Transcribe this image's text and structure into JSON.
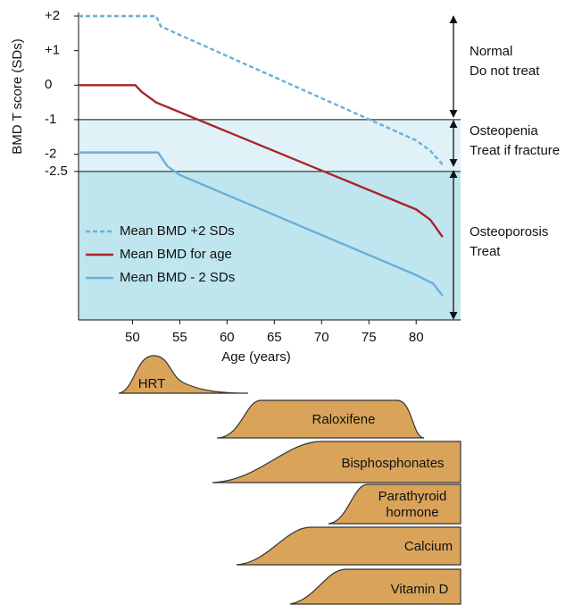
{
  "chart_data": {
    "type": "line",
    "x_label": "Age (years)",
    "y_label": "BMD T score (SDs)",
    "xlim": [
      44.3,
      84.7
    ],
    "ylim": [
      -6.8,
      2.0
    ],
    "xticks": [
      50,
      55,
      60,
      65,
      70,
      75,
      80
    ],
    "yticks": [
      {
        "value": 2,
        "label": "+2"
      },
      {
        "value": 1,
        "label": "+1"
      },
      0,
      -1,
      -2,
      -2.5
    ],
    "thresholds": [
      -1,
      -2.5
    ],
    "legend": "lower left",
    "series": [
      {
        "name": "Mean BMD +2 SDs",
        "color": "#6ab0d8",
        "linestyle": "dashed",
        "x": [
          44.3,
          52.5,
          53.0,
          80.0,
          81.5,
          82.8
        ],
        "values": [
          2.0,
          2.0,
          1.7,
          -1.6,
          -1.9,
          -2.3
        ]
      },
      {
        "name": "Mean BMD for age",
        "color": "#a8262c",
        "linestyle": "solid",
        "x": [
          44.3,
          50.3,
          51.0,
          52.5,
          80.0,
          81.5,
          82.8
        ],
        "values": [
          0.0,
          0.0,
          -0.2,
          -0.5,
          -3.6,
          -3.9,
          -4.4
        ]
      },
      {
        "name": "Mean BMD - 2 SDs",
        "color": "#6ab0d8",
        "linestyle": "solid",
        "x": [
          44.3,
          52.7,
          53.7,
          55.0,
          80.0,
          81.8,
          82.8
        ],
        "values": [
          -1.95,
          -1.95,
          -2.35,
          -2.6,
          -5.5,
          -5.75,
          -6.1
        ]
      }
    ],
    "zones": [
      [
        "Normal",
        "Do not treat"
      ],
      [
        "Osteopenia",
        "Treat if fracture"
      ],
      [
        "Osteoporosis",
        "Treat"
      ]
    ],
    "treatments": [
      [
        "HRT"
      ],
      [
        "Raloxifene"
      ],
      [
        "Bisphosphonates"
      ],
      [
        "Parathyroid",
        "hormone"
      ],
      [
        "Calcium"
      ],
      [
        "Vitamin D"
      ]
    ]
  }
}
